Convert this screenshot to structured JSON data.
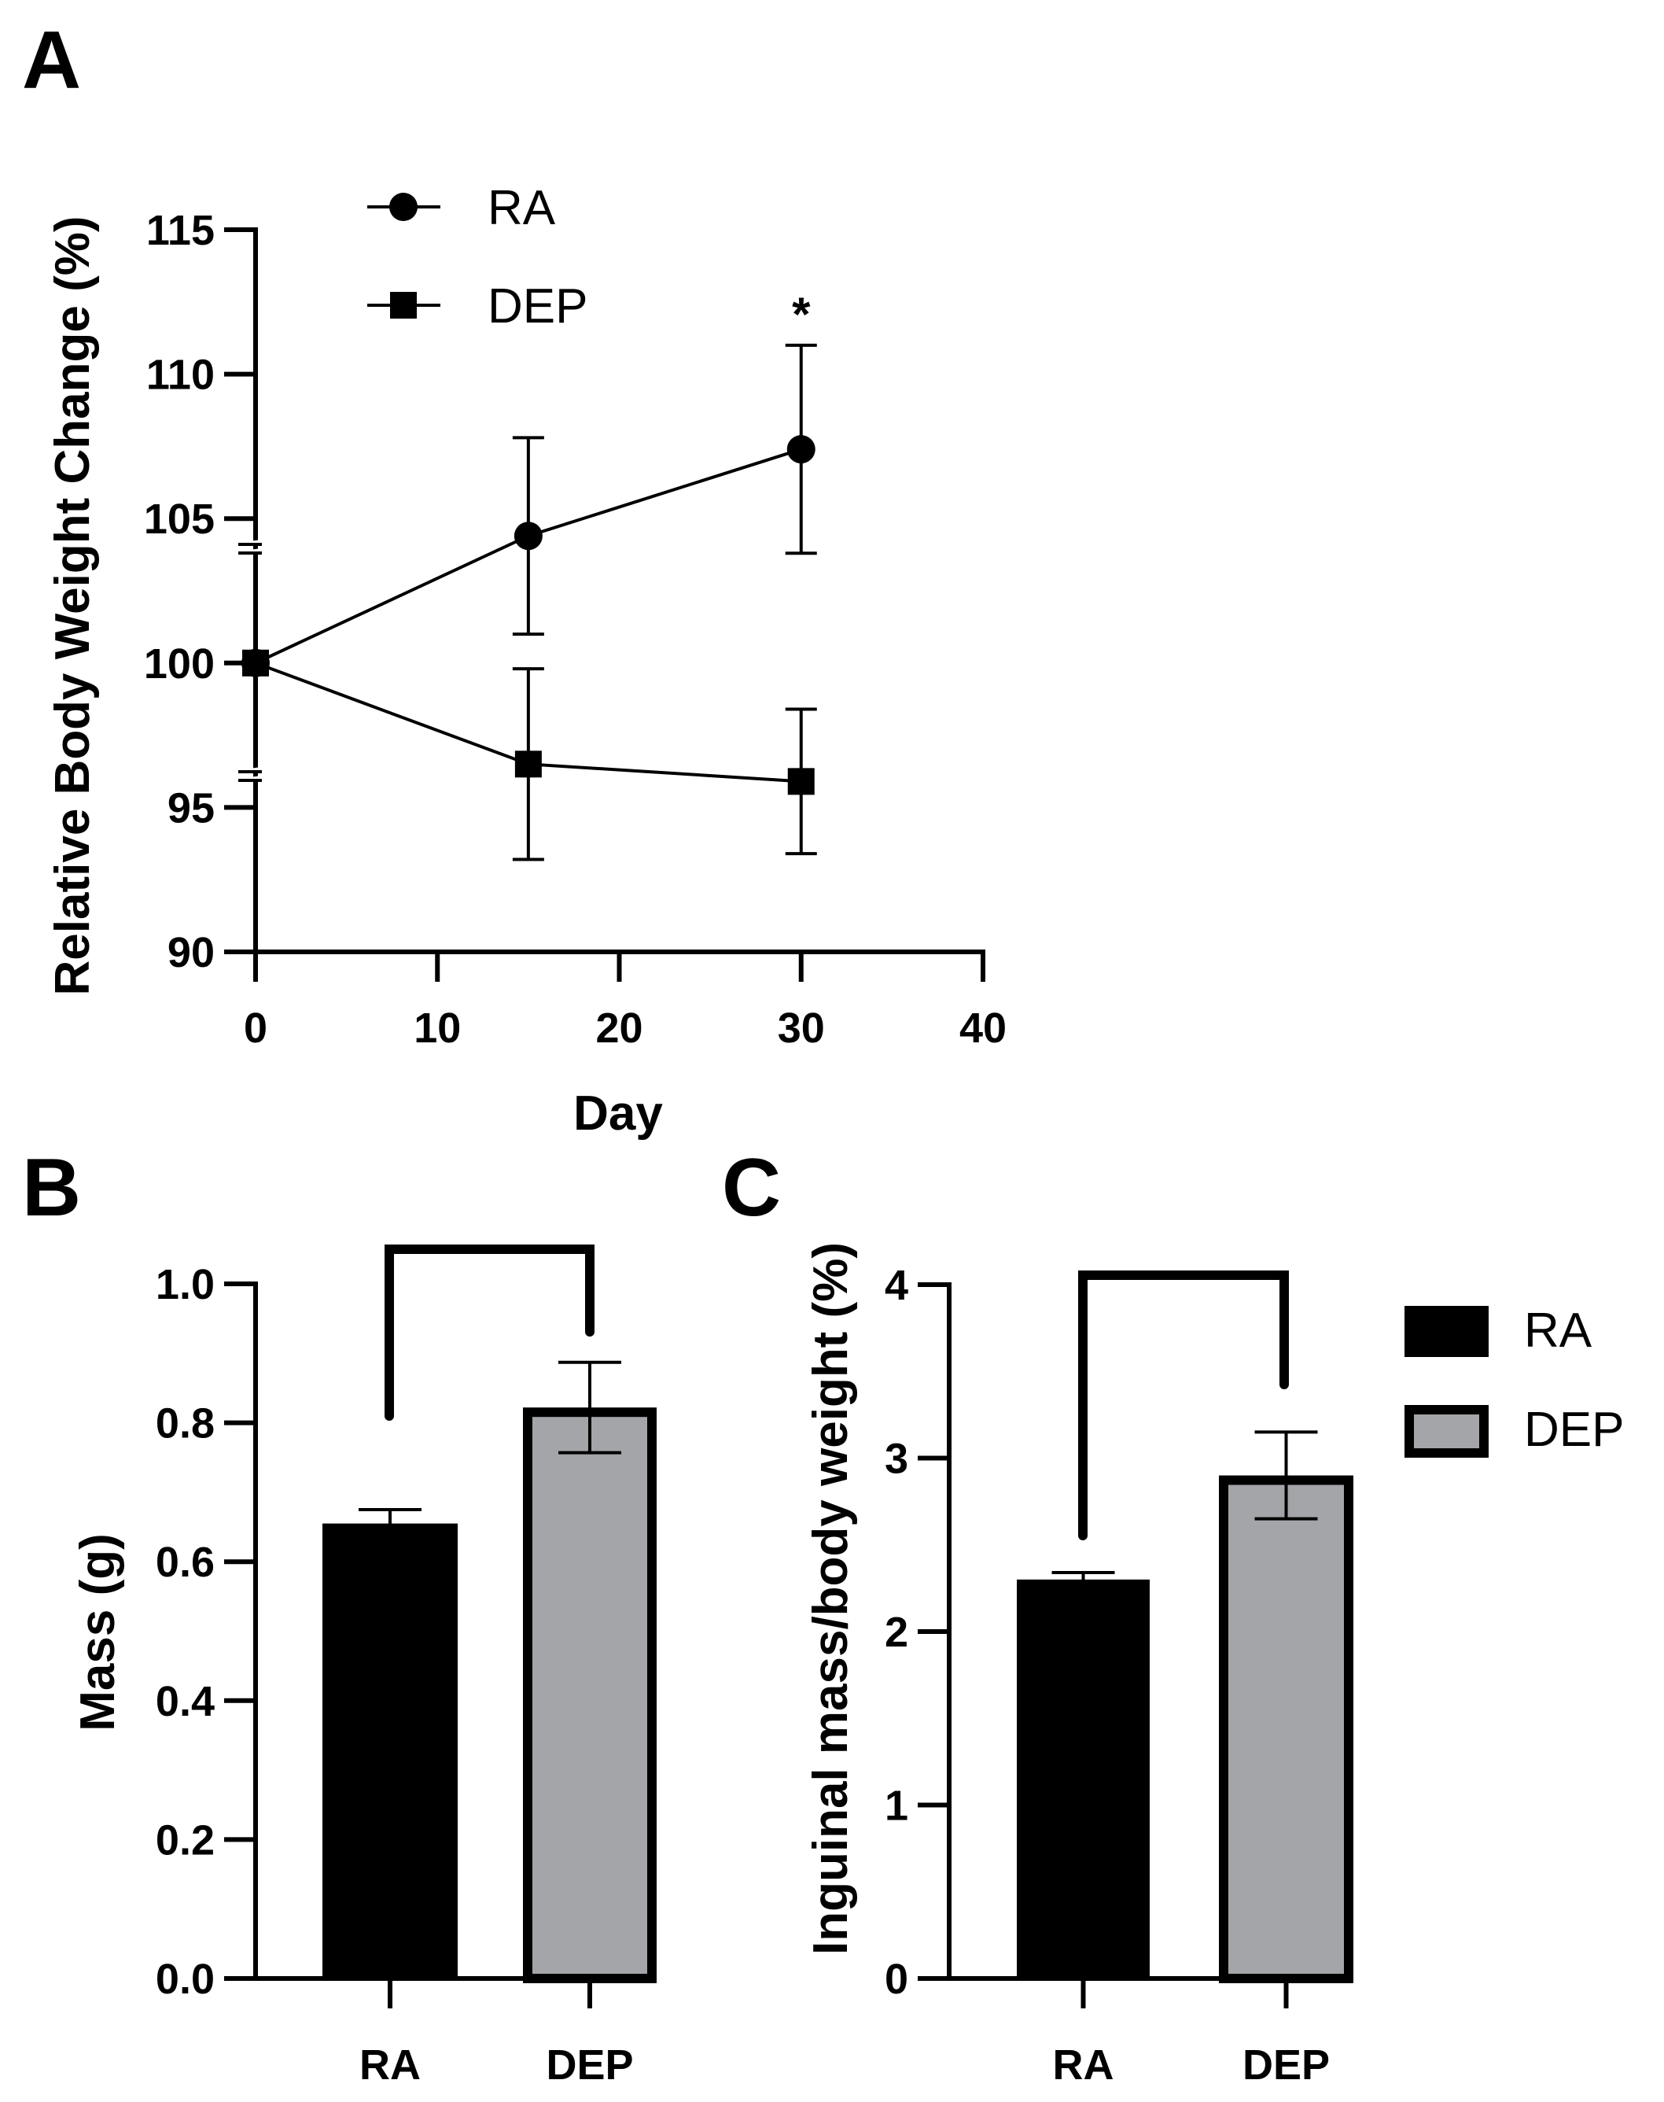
{
  "panels": {
    "a": {
      "letter": "A"
    },
    "b": {
      "letter": "B"
    },
    "c": {
      "letter": "C"
    }
  },
  "chart_data": [
    {
      "id": "A",
      "type": "line",
      "title": "",
      "xlabel": "Day",
      "ylabel": "Relative Body Weight  Change (%)",
      "xlim": [
        0,
        40
      ],
      "ylim": [
        90,
        115
      ],
      "xticks": [
        "0",
        "10",
        "20",
        "30",
        "40"
      ],
      "yticks": [
        "90",
        "95",
        "100",
        "105",
        "110",
        "115"
      ],
      "axis_break": true,
      "legend_position": "top-left",
      "series": [
        {
          "name": "RA",
          "marker": "circle",
          "x": [
            0,
            15,
            30
          ],
          "y": [
            100,
            104.4,
            107.4
          ],
          "err": [
            0,
            3.4,
            3.6
          ]
        },
        {
          "name": "DEP",
          "marker": "square",
          "x": [
            0,
            15,
            30
          ],
          "y": [
            100,
            96.5,
            95.9
          ],
          "err": [
            0,
            3.3,
            2.5
          ]
        }
      ],
      "annotations": [
        {
          "text": "*",
          "x": 30,
          "y": 112.6
        }
      ]
    },
    {
      "id": "B",
      "type": "bar",
      "ylabel": "Mass (g)",
      "categories": [
        "RA",
        "DEP"
      ],
      "values": [
        0.655,
        0.822
      ],
      "errors": [
        0.02,
        0.065
      ],
      "ylim": [
        0,
        1.0
      ],
      "yticks": [
        "0.0",
        "0.2",
        "0.4",
        "0.6",
        "0.8",
        "1.0"
      ],
      "colors": [
        "#000000",
        "#a4a5a9"
      ],
      "significance_bracket": true
    },
    {
      "id": "C",
      "type": "bar",
      "ylabel": "Inguinal mass/body weight (%)",
      "categories": [
        "RA",
        "DEP"
      ],
      "values": [
        2.3,
        2.9
      ],
      "errors": [
        0.04,
        0.25
      ],
      "ylim": [
        0,
        4
      ],
      "yticks": [
        "0",
        "1",
        "2",
        "3",
        "4"
      ],
      "colors": [
        "#000000",
        "#a4a5a9"
      ],
      "significance_bracket": true,
      "legend_position": "right",
      "legend": [
        "RA",
        "DEP"
      ]
    }
  ]
}
